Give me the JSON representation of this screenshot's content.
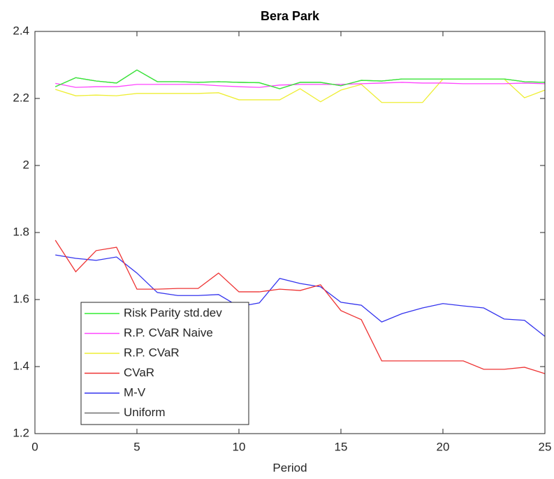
{
  "chart_data": {
    "type": "line",
    "title": "Bera Park",
    "xlabel": "Period",
    "x": [
      1,
      2,
      3,
      4,
      5,
      6,
      7,
      8,
      9,
      10,
      11,
      12,
      13,
      14,
      15,
      16,
      17,
      18,
      19,
      20,
      21,
      22,
      23,
      24,
      25
    ],
    "series": [
      {
        "name": "Risk Parity std.dev",
        "color": "#33ee33",
        "values": [
          2.235,
          2.262,
          2.252,
          2.246,
          2.285,
          2.25,
          2.25,
          2.248,
          2.25,
          2.248,
          2.247,
          2.229,
          2.248,
          2.248,
          2.238,
          2.254,
          2.252,
          2.258,
          2.258,
          2.258,
          2.258,
          2.258,
          2.258,
          2.25,
          2.248
        ]
      },
      {
        "name": "R.P. CVaR Naive",
        "color": "#ff44ff",
        "values": [
          2.245,
          2.233,
          2.235,
          2.235,
          2.242,
          2.242,
          2.242,
          2.242,
          2.238,
          2.235,
          2.233,
          2.24,
          2.242,
          2.242,
          2.242,
          2.244,
          2.246,
          2.248,
          2.246,
          2.246,
          2.244,
          2.244,
          2.244,
          2.246,
          2.244
        ]
      },
      {
        "name": "R.P. CVaR",
        "color": "#eeee33",
        "values": [
          2.227,
          2.208,
          2.21,
          2.208,
          2.215,
          2.215,
          2.215,
          2.215,
          2.217,
          2.196,
          2.196,
          2.196,
          2.229,
          2.19,
          2.225,
          2.242,
          2.188,
          2.188,
          2.188,
          2.258,
          2.258,
          2.258,
          2.258,
          2.202,
          2.225
        ]
      },
      {
        "name": "CVaR",
        "color": "#ee3333",
        "values": [
          1.777,
          1.683,
          1.746,
          1.756,
          1.631,
          1.631,
          1.633,
          1.633,
          1.679,
          1.623,
          1.623,
          1.631,
          1.627,
          1.644,
          1.567,
          1.54,
          1.417,
          1.417,
          1.417,
          1.417,
          1.417,
          1.392,
          1.392,
          1.398,
          1.379
        ]
      },
      {
        "name": "M-V",
        "color": "#3333ee",
        "values": [
          1.733,
          1.723,
          1.717,
          1.727,
          1.679,
          1.621,
          1.612,
          1.612,
          1.615,
          1.579,
          1.59,
          1.663,
          1.648,
          1.638,
          1.592,
          1.583,
          1.533,
          1.558,
          1.575,
          1.588,
          1.581,
          1.575,
          1.542,
          1.538,
          1.49
        ]
      },
      {
        "name": "Uniform",
        "color": "#707070",
        "values": [
          2.235,
          2.262,
          2.252,
          2.246,
          2.285,
          2.25,
          2.25,
          2.248,
          2.25,
          2.248,
          2.247,
          2.229,
          2.248,
          2.248,
          2.238,
          2.254,
          2.252,
          2.258,
          2.258,
          2.258,
          2.258,
          2.258,
          2.258,
          2.25,
          2.248
        ]
      }
    ],
    "xlim": [
      0,
      25
    ],
    "xticks": [
      0,
      5,
      10,
      15,
      20,
      25
    ],
    "ylim": [
      1.2,
      2.4
    ],
    "yticks": [
      1.2,
      1.4,
      1.6,
      1.8,
      2,
      2.2,
      2.4
    ],
    "legend_loc": "southwest",
    "grid": false
  }
}
